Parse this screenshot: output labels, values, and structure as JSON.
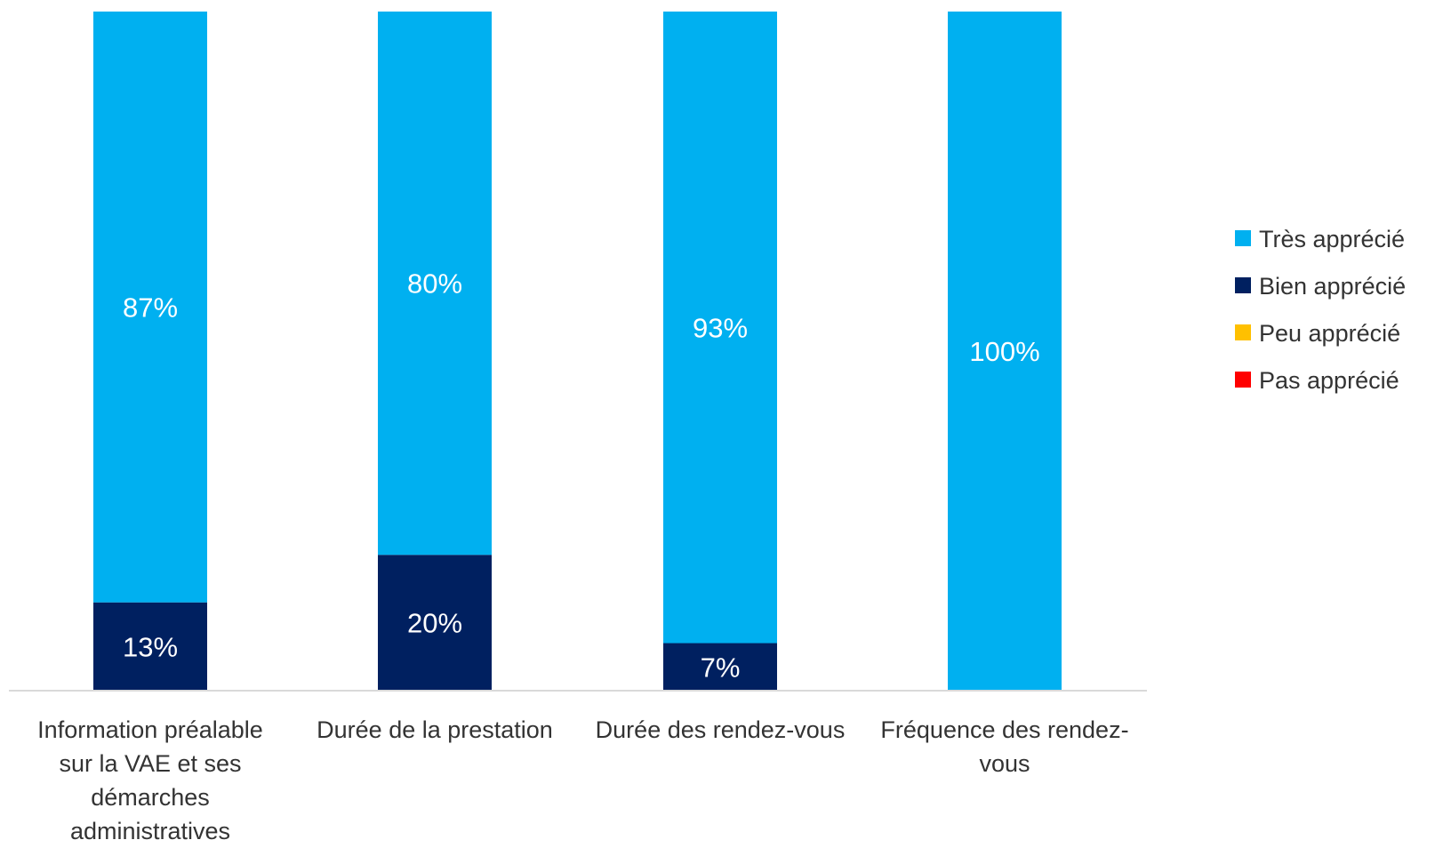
{
  "chart_data": {
    "type": "bar",
    "stacked": true,
    "categories": [
      "Information préalable sur la VAE et ses démarches administratives",
      "Durée de la prestation",
      "Durée des rendez-vous",
      "Fréquence des rendez-vous"
    ],
    "category_label_lines": [
      [
        "Information préalable",
        "sur la VAE et ses",
        "démarches",
        "administratives"
      ],
      [
        "Durée de la prestation"
      ],
      [
        "Durée des rendez-vous"
      ],
      [
        "Fréquence des rendez-",
        "vous"
      ]
    ],
    "series": [
      {
        "name": "Très apprécié",
        "color": "#00B0F0",
        "values": [
          87,
          80,
          93,
          100
        ],
        "labels": [
          "87%",
          "80%",
          "93%",
          "100%"
        ]
      },
      {
        "name": "Bien apprécié",
        "color": "#002060",
        "values": [
          13,
          20,
          7,
          0
        ],
        "labels": [
          "13%",
          "20%",
          "7%",
          ""
        ]
      },
      {
        "name": "Peu apprécié",
        "color": "#FFC000",
        "values": [
          0,
          0,
          0,
          0
        ],
        "labels": [
          "",
          "",
          "",
          ""
        ]
      },
      {
        "name": "Pas apprécié",
        "color": "#FF0000",
        "values": [
          0,
          0,
          0,
          0
        ],
        "labels": [
          "",
          "",
          "",
          ""
        ]
      }
    ],
    "stack_order": [
      "Bien apprécié",
      "Très apprécié"
    ],
    "ylim": [
      0,
      100
    ],
    "unit": "%",
    "grid": false,
    "legend_position": "right",
    "title": "",
    "xlabel": "",
    "ylabel": ""
  }
}
